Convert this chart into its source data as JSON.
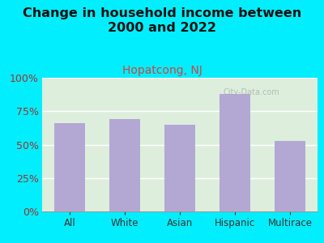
{
  "title": "Change in household income between\n2000 and 2022",
  "subtitle": "Hopatcong, NJ",
  "categories": [
    "All",
    "White",
    "Asian",
    "Hispanic",
    "Multirace"
  ],
  "values": [
    66,
    69,
    65,
    88,
    53
  ],
  "bar_color": "#b3a8d4",
  "title_fontsize": 11.5,
  "subtitle_fontsize": 10,
  "subtitle_color": "#cc4444",
  "title_color": "#111111",
  "ytick_label_color": "#993333",
  "xtick_label_color": "#333333",
  "background_color": "#00eeff",
  "ylim": [
    0,
    100
  ],
  "yticks": [
    0,
    25,
    50,
    75,
    100
  ]
}
